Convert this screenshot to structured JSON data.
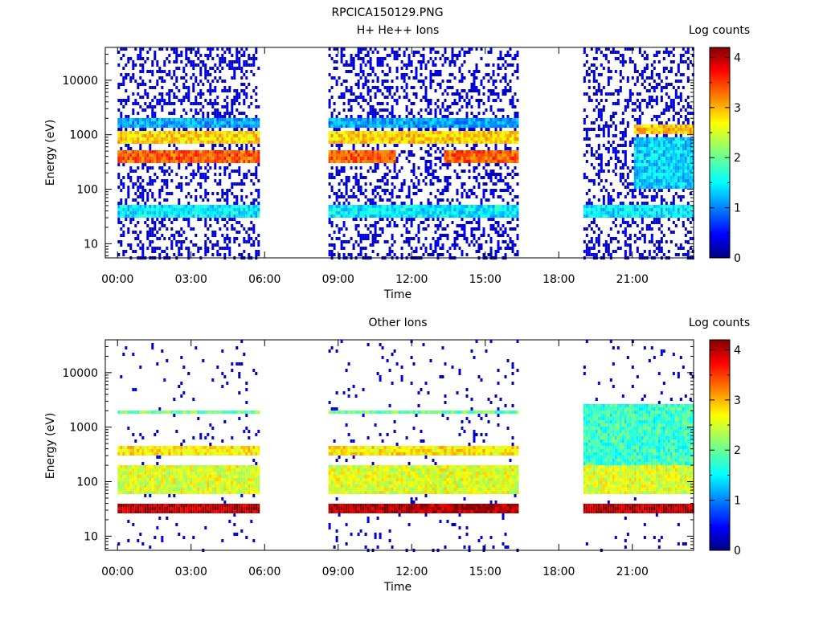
{
  "title": "RPCICA150129.PNG",
  "chart_data": [
    {
      "type": "heatmap",
      "title": "H+ He++ Ions",
      "xlabel": "Time",
      "ylabel": "Energy (eV)",
      "x_ticks": [
        "00:00",
        "03:00",
        "06:00",
        "09:00",
        "12:00",
        "15:00",
        "18:00",
        "21:00"
      ],
      "x_tick_hours": [
        0,
        3,
        6,
        9,
        12,
        15,
        18,
        21
      ],
      "xlim_hours": [
        -0.5,
        23.5
      ],
      "y_scale": "log",
      "y_ticks": [
        "10",
        "100",
        "1000",
        "10000"
      ],
      "y_tick_values": [
        10,
        100,
        1000,
        10000
      ],
      "ylim": [
        5.5,
        40000
      ],
      "data_intervals_hours": [
        [
          0,
          5.8
        ],
        [
          8.6,
          16.3
        ],
        [
          19.0,
          23.5
        ]
      ],
      "bands": [
        {
          "intervals_hours": [
            [
              0,
              5.8
            ],
            [
              8.6,
              16.3
            ],
            [
              19.0,
              23.5
            ]
          ],
          "energy_range_eV": [
            30,
            50
          ],
          "log_counts": 1.5
        },
        {
          "intervals_hours": [
            [
              0,
              5.8
            ],
            [
              8.6,
              11.3
            ],
            [
              13.3,
              16.3
            ]
          ],
          "energy_range_eV": [
            300,
            550
          ],
          "log_counts": 3.3
        },
        {
          "intervals_hours": [
            [
              0,
              5.8
            ],
            [
              8.6,
              16.3
            ]
          ],
          "energy_range_eV": [
            700,
            1150
          ],
          "log_counts": 2.8
        },
        {
          "intervals_hours": [
            [
              0,
              5.8
            ],
            [
              8.6,
              16.3
            ]
          ],
          "energy_range_eV": [
            1300,
            2000
          ],
          "log_counts": 1.2
        },
        {
          "intervals_hours": [
            [
              21.0,
              23.5
            ]
          ],
          "energy_range_eV": [
            1000,
            1500
          ],
          "log_counts": 2.9
        },
        {
          "intervals_hours": [
            [
              21.0,
              23.5
            ]
          ],
          "energy_range_eV": [
            100,
            900
          ],
          "log_counts": 1.4
        }
      ],
      "colorbar": {
        "label": "Log counts",
        "ticks": [
          "0",
          "1",
          "2",
          "3",
          "4"
        ],
        "range": [
          0,
          4.2
        ]
      }
    },
    {
      "type": "heatmap",
      "title": "Other Ions",
      "xlabel": "Time",
      "ylabel": "Energy (eV)",
      "x_ticks": [
        "00:00",
        "03:00",
        "06:00",
        "09:00",
        "12:00",
        "15:00",
        "18:00",
        "21:00"
      ],
      "x_tick_hours": [
        0,
        3,
        6,
        9,
        12,
        15,
        18,
        21
      ],
      "xlim_hours": [
        -0.5,
        23.5
      ],
      "y_scale": "log",
      "y_ticks": [
        "10",
        "100",
        "1000",
        "10000"
      ],
      "y_tick_values": [
        10,
        100,
        1000,
        10000
      ],
      "ylim": [
        5.5,
        40000
      ],
      "data_intervals_hours": [
        [
          0,
          5.8
        ],
        [
          8.6,
          16.3
        ],
        [
          19.0,
          23.5
        ]
      ],
      "bands": [
        {
          "intervals_hours": [
            [
              0,
              5.8
            ],
            [
              8.6,
              16.3
            ],
            [
              19.0,
              23.5
            ]
          ],
          "energy_range_eV": [
            26,
            42
          ],
          "log_counts": 4.0
        },
        {
          "intervals_hours": [
            [
              0,
              5.8
            ],
            [
              8.6,
              16.3
            ],
            [
              19.0,
              23.5
            ]
          ],
          "energy_range_eV": [
            60,
            200
          ],
          "log_counts": 2.5
        },
        {
          "intervals_hours": [
            [
              0,
              5.8
            ],
            [
              8.6,
              16.3
            ]
          ],
          "energy_range_eV": [
            300,
            450
          ],
          "log_counts": 2.7
        },
        {
          "intervals_hours": [
            [
              0,
              5.8
            ],
            [
              8.6,
              16.3
            ]
          ],
          "energy_range_eV": [
            1700,
            2100
          ],
          "log_counts": 2.0
        },
        {
          "intervals_hours": [
            [
              19.0,
              23.5
            ]
          ],
          "energy_range_eV": [
            200,
            2500
          ],
          "log_counts": 1.8
        }
      ],
      "colorbar": {
        "label": "Log counts",
        "ticks": [
          "0",
          "1",
          "2",
          "3",
          "4"
        ],
        "range": [
          0,
          4.2
        ]
      }
    }
  ]
}
